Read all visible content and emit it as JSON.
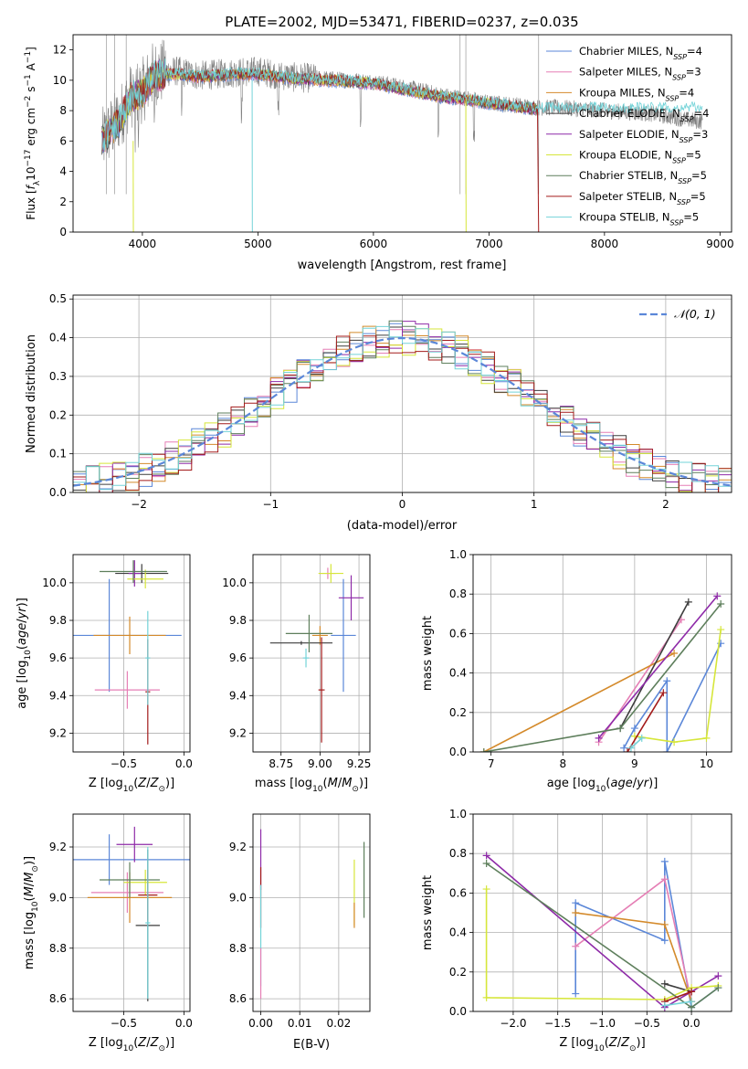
{
  "figure": {
    "title": "PLATE=2002, MJD=53471, FIBERID=0237, z=0.035"
  },
  "colors": {
    "series": [
      "#5b87d8",
      "#e57fb5",
      "#d48a2b",
      "#3d3d3d",
      "#8e2aa8",
      "#d6e63a",
      "#5e7f5c",
      "#a31a1a",
      "#73d3d8"
    ],
    "spectrum_gray": "#808080",
    "normal_curve": "#5b87d8",
    "grid": "#b0b0b0"
  },
  "chart_data": [
    {
      "id": "spectrum",
      "type": "line",
      "xlabel": "wavelength [Angstrom, rest frame]",
      "ylabel": "Flux [f_λ10^-17 erg cm^-2 s^-1 A^-1]",
      "xlim": [
        3400,
        9100
      ],
      "ylim": [
        0,
        13
      ],
      "xticks": [
        4000,
        5000,
        6000,
        7000,
        8000,
        9000
      ],
      "yticks": [
        0,
        2,
        4,
        6,
        8,
        10,
        12
      ],
      "grid": false,
      "legend_position": "top-right",
      "legend": [
        "Chabrier MILES, N_SSP=4",
        "Salpeter MILES, N_SSP=3",
        "Kroupa MILES, N_SSP=4",
        "Chabrier ELODIE, N_SSP=4",
        "Salpeter ELODIE, N_SSP=3",
        "Kroupa ELODIE, N_SSP=5",
        "Chabrier STELIB, N_SSP=5",
        "Salpeter STELIB, N_SSP=5",
        "Kroupa STELIB, N_SSP=5"
      ],
      "data_envelope": {
        "x": [
          3650,
          3800,
          3900,
          4000,
          4100,
          4300,
          4500,
          4800,
          5000,
          5300,
          5600,
          6000,
          6300,
          6600,
          6800,
          7000,
          7200,
          7400,
          7600,
          8000,
          8400,
          8800
        ],
        "y": [
          6.0,
          7.5,
          9.0,
          9.3,
          10.5,
          10.6,
          10.3,
          10.5,
          10.6,
          10.2,
          10.1,
          9.9,
          9.5,
          9.0,
          8.8,
          8.5,
          8.4,
          8.2,
          8.2,
          8.0,
          7.8,
          7.3
        ]
      },
      "model_envelope": {
        "x": [
          3650,
          3800,
          3900,
          4000,
          4100,
          4300,
          4500,
          4800,
          5000,
          5300,
          5600,
          6000,
          6300,
          6600,
          6800,
          7000,
          7200,
          7400
        ],
        "y": [
          6.0,
          7.3,
          8.8,
          9.2,
          10.3,
          10.4,
          10.2,
          10.4,
          10.4,
          10.1,
          10.0,
          9.8,
          9.3,
          8.9,
          8.7,
          8.5,
          8.3,
          8.1
        ]
      },
      "model_end_wavelength": 7420
    },
    {
      "id": "residual-histogram",
      "type": "area",
      "xlabel": "(data-model)/error",
      "ylabel": "Normed distribution",
      "xlim": [
        -2.5,
        2.5
      ],
      "ylim": [
        0,
        0.51
      ],
      "xticks": [
        -2,
        -1,
        0,
        1,
        2
      ],
      "yticks": [
        0.0,
        0.1,
        0.2,
        0.3,
        0.4,
        0.5
      ],
      "grid": true,
      "legend_position": "top-right",
      "legend": [
        "𝒩(0, 1)"
      ],
      "bin_width": 0.1,
      "bins_start": -2.5
    },
    {
      "id": "age-vs-Z",
      "type": "scatter",
      "xlabel": "Z [log10(Z/Z☉)]",
      "ylabel": "age [log10(age/yr)]",
      "xlim": [
        -0.92,
        0.05
      ],
      "ylim": [
        9.1,
        10.15
      ],
      "xticks": [
        -0.5,
        0.0
      ],
      "yticks": [
        9.2,
        9.4,
        9.6,
        9.8,
        10.0
      ],
      "grid": true,
      "points": [
        {
          "x": -0.62,
          "y": 9.72,
          "xerr": 0.6,
          "yerr": 0.3,
          "series": 0
        },
        {
          "x": -0.47,
          "y": 9.43,
          "xerr": 0.27,
          "yerr": 0.1,
          "series": 1
        },
        {
          "x": -0.45,
          "y": 9.72,
          "xerr": 0.3,
          "yerr": 0.1,
          "series": 2
        },
        {
          "x": -0.35,
          "y": 10.05,
          "xerr": 0.22,
          "yerr": 0.05,
          "series": 3
        },
        {
          "x": -0.41,
          "y": 10.05,
          "xerr": 0.05,
          "yerr": 0.07,
          "series": 4
        },
        {
          "x": -0.32,
          "y": 10.02,
          "xerr": 0.15,
          "yerr": 0.05,
          "series": 5
        },
        {
          "x": -0.42,
          "y": 10.06,
          "xerr": 0.28,
          "yerr": 0.06,
          "series": 6
        },
        {
          "x": -0.3,
          "y": 9.42,
          "xerr": 0.02,
          "yerr": 0.28,
          "series": 7
        },
        {
          "x": -0.3,
          "y": 9.6,
          "xerr": 0.02,
          "yerr": 0.25,
          "series": 8
        }
      ]
    },
    {
      "id": "age-vs-mass",
      "type": "scatter",
      "xlabel": "mass [log10(M/M☉)]",
      "ylabel": "",
      "xlim": [
        8.57,
        9.32
      ],
      "ylim": [
        9.1,
        10.15
      ],
      "xticks": [
        8.75,
        9.0,
        9.25
      ],
      "yticks": [
        9.2,
        9.4,
        9.6,
        9.8,
        10.0
      ],
      "grid": true,
      "points": [
        {
          "x": 9.15,
          "y": 9.72,
          "xerr": 0.08,
          "yerr": 0.3,
          "series": 0
        },
        {
          "x": 9.05,
          "y": 10.05,
          "xerr": 0.05,
          "yerr": 0.03,
          "series": 1
        },
        {
          "x": 9.0,
          "y": 9.72,
          "xerr": 0.05,
          "yerr": 0.05,
          "series": 2
        },
        {
          "x": 8.88,
          "y": 9.68,
          "xerr": 0.2,
          "yerr": 0.01,
          "series": 3
        },
        {
          "x": 9.2,
          "y": 9.92,
          "xerr": 0.08,
          "yerr": 0.12,
          "series": 4
        },
        {
          "x": 9.07,
          "y": 10.05,
          "xerr": 0.08,
          "yerr": 0.05,
          "series": 5
        },
        {
          "x": 8.93,
          "y": 9.73,
          "xerr": 0.15,
          "yerr": 0.1,
          "series": 6
        },
        {
          "x": 9.01,
          "y": 9.43,
          "xerr": 0.02,
          "yerr": 0.28,
          "series": 7
        },
        {
          "x": 8.91,
          "y": 9.6,
          "xerr": 0.02,
          "yerr": 0.05,
          "series": 8
        }
      ]
    },
    {
      "id": "mass-weight-vs-age",
      "type": "line",
      "xlabel": "age [log10(age/yr)]",
      "ylabel": "mass weight",
      "xlim": [
        6.75,
        10.35
      ],
      "ylim": [
        0,
        1.0
      ],
      "xticks": [
        7,
        8,
        9,
        10
      ],
      "yticks": [
        0.0,
        0.2,
        0.4,
        0.6,
        0.8,
        1.0
      ],
      "grid": true,
      "series": [
        {
          "x": [
            8.85,
            9.0,
            9.45,
            9.45,
            10.2
          ],
          "y": [
            0.02,
            0.12,
            0.36,
            0.0,
            0.55
          ],
          "series": 0
        },
        {
          "x": [
            8.5,
            9.65
          ],
          "y": [
            0.05,
            0.67
          ],
          "series": 1
        },
        {
          "x": [
            6.9,
            9.55
          ],
          "y": [
            0.0,
            0.5
          ],
          "series": 2
        },
        {
          "x": [
            8.8,
            9.75
          ],
          "y": [
            0.12,
            0.76
          ],
          "series": 3
        },
        {
          "x": [
            8.5,
            10.15
          ],
          "y": [
            0.07,
            0.79
          ],
          "series": 4
        },
        {
          "x": [
            9.0,
            9.55,
            10.0,
            10.2
          ],
          "y": [
            0.08,
            0.05,
            0.07,
            0.62
          ],
          "series": 5
        },
        {
          "x": [
            6.9,
            8.8,
            10.2
          ],
          "y": [
            0.0,
            0.12,
            0.75
          ],
          "series": 6
        },
        {
          "x": [
            8.9,
            9.4
          ],
          "y": [
            0.0,
            0.3
          ],
          "series": 7
        },
        {
          "x": [
            8.95,
            9.1
          ],
          "y": [
            0.02,
            0.07
          ],
          "series": 8
        }
      ]
    },
    {
      "id": "mass-vs-Z",
      "type": "scatter",
      "xlabel": "Z [log10(Z/Z☉)]",
      "ylabel": "mass [log10(M/M☉)]",
      "xlim": [
        -0.92,
        0.05
      ],
      "ylim": [
        8.55,
        9.33
      ],
      "xticks": [
        -0.5,
        0.0
      ],
      "yticks": [
        8.6,
        8.8,
        9.0,
        9.2
      ],
      "grid": true,
      "points": [
        {
          "x": -0.62,
          "y": 9.15,
          "xerr": 0.7,
          "yerr": 0.1,
          "series": 0
        },
        {
          "x": -0.47,
          "y": 9.02,
          "xerr": 0.3,
          "yerr": 0.08,
          "series": 1
        },
        {
          "x": -0.45,
          "y": 9.0,
          "xerr": 0.35,
          "yerr": 0.1,
          "series": 2
        },
        {
          "x": -0.3,
          "y": 8.89,
          "xerr": 0.1,
          "yerr": 0.3,
          "series": 3
        },
        {
          "x": -0.41,
          "y": 9.21,
          "xerr": 0.15,
          "yerr": 0.07,
          "series": 4
        },
        {
          "x": -0.32,
          "y": 9.06,
          "xerr": 0.18,
          "yerr": 0.05,
          "series": 5
        },
        {
          "x": -0.45,
          "y": 9.07,
          "xerr": 0.25,
          "yerr": 0.07,
          "series": 6
        },
        {
          "x": -0.3,
          "y": 9.01,
          "xerr": 0.08,
          "yerr": 0.1,
          "series": 7
        },
        {
          "x": -0.3,
          "y": 8.9,
          "xerr": 0.02,
          "yerr": 0.3,
          "series": 8
        }
      ]
    },
    {
      "id": "mass-vs-ebv",
      "type": "scatter",
      "xlabel": "E(B-V)",
      "ylabel": "",
      "xlim": [
        -0.002,
        0.028
      ],
      "ylim": [
        8.55,
        9.33
      ],
      "xticks": [
        0.0,
        0.01,
        0.02
      ],
      "yticks": [
        8.6,
        8.8,
        9.0,
        9.2
      ],
      "grid": true,
      "points": [
        {
          "x": 0.0,
          "y": 9.15,
          "xerr": 0.0,
          "yerr": 0.12,
          "series": 4
        },
        {
          "x": 0.0,
          "y": 9.0,
          "xerr": 0.0,
          "yerr": 0.12,
          "series": 7
        },
        {
          "x": 0.0,
          "y": 8.85,
          "xerr": 0.0,
          "yerr": 0.2,
          "series": 8
        },
        {
          "x": 0.0,
          "y": 8.7,
          "xerr": 0.0,
          "yerr": 0.1,
          "series": 1
        },
        {
          "x": 0.024,
          "y": 9.02,
          "xerr": 0.0,
          "yerr": 0.13,
          "series": 5
        },
        {
          "x": 0.024,
          "y": 8.93,
          "xerr": 0.0,
          "yerr": 0.05,
          "series": 2
        },
        {
          "x": 0.0265,
          "y": 9.07,
          "xerr": 0.0,
          "yerr": 0.15,
          "series": 6
        }
      ]
    },
    {
      "id": "mass-weight-vs-Z",
      "type": "line",
      "xlabel": "Z [log10(Z/Z☉)]",
      "ylabel": "mass weight",
      "xlim": [
        -2.45,
        0.45
      ],
      "ylim": [
        0,
        1.0
      ],
      "xticks": [
        -2.0,
        -1.5,
        -1.0,
        -0.5,
        0.0
      ],
      "yticks": [
        0.0,
        0.2,
        0.4,
        0.6,
        0.8,
        1.0
      ],
      "grid": true,
      "series": [
        {
          "x": [
            -1.3,
            -1.3,
            -0.3,
            -0.3,
            0.0,
            0.3
          ],
          "y": [
            0.09,
            0.55,
            0.36,
            0.76,
            0.02,
            0.12
          ],
          "series": 0
        },
        {
          "x": [
            -1.3,
            -0.3,
            0.0
          ],
          "y": [
            0.33,
            0.67,
            0.05
          ],
          "series": 1
        },
        {
          "x": [
            -1.3,
            -0.3,
            0.0
          ],
          "y": [
            0.5,
            0.44,
            0.05
          ],
          "series": 2
        },
        {
          "x": [
            -0.3,
            0.0
          ],
          "y": [
            0.14,
            0.1
          ],
          "series": 3
        },
        {
          "x": [
            -2.3,
            -0.3,
            0.3
          ],
          "y": [
            0.79,
            0.02,
            0.18
          ],
          "series": 4
        },
        {
          "x": [
            -2.3,
            -2.3,
            -0.3,
            0.0,
            0.3
          ],
          "y": [
            0.62,
            0.07,
            0.06,
            0.12,
            0.13
          ],
          "series": 5
        },
        {
          "x": [
            -2.3,
            0.0,
            0.3
          ],
          "y": [
            0.75,
            0.02,
            0.12
          ],
          "series": 6
        },
        {
          "x": [
            -0.3,
            0.0
          ],
          "y": [
            0.05,
            0.1
          ],
          "series": 7
        },
        {
          "x": [
            -0.3,
            0.0
          ],
          "y": [
            0.03,
            0.05
          ],
          "series": 8
        }
      ]
    }
  ]
}
